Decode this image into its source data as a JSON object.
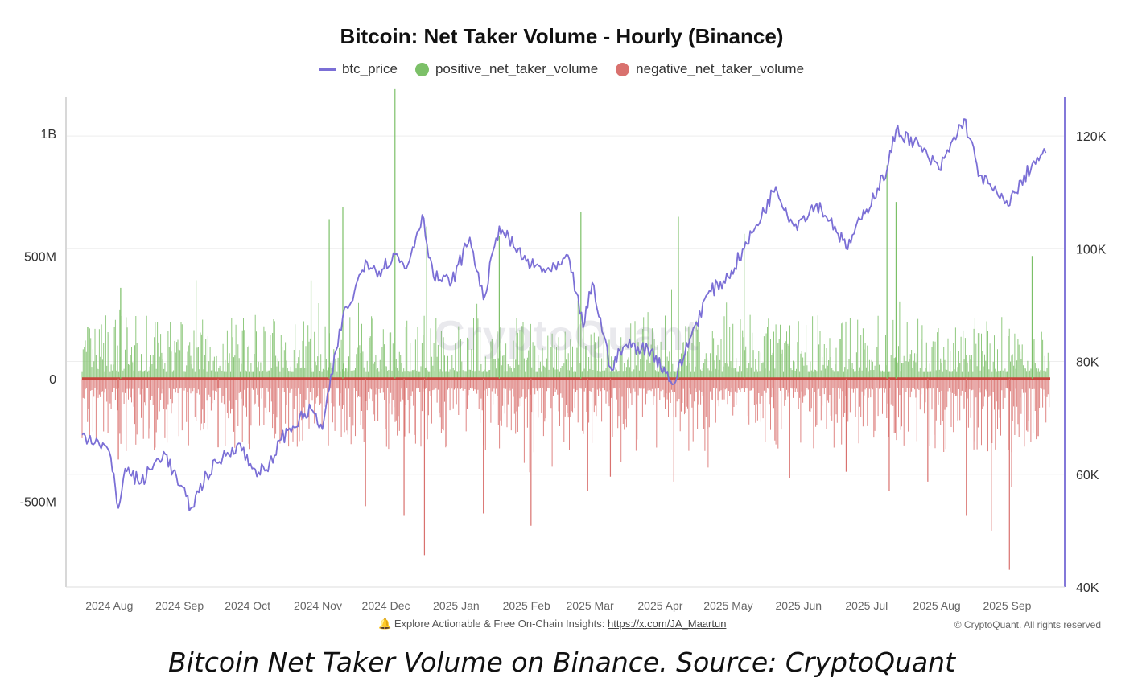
{
  "chart_data": {
    "type": "bar",
    "title": "Bitcoin: Net Taker Volume - Hourly (Binance)",
    "legend": [
      {
        "name": "btc_price",
        "color": "#7b6fd6",
        "shape": "line"
      },
      {
        "name": "positive_net_taker_volume",
        "color": "#7cc068",
        "shape": "dot"
      },
      {
        "name": "negative_net_taker_volume",
        "color": "#d9716e",
        "shape": "dot"
      }
    ],
    "x_ticks": [
      "2024 Aug",
      "2024 Sep",
      "2024 Oct",
      "2024 Nov",
      "2024 Dec",
      "2025 Jan",
      "2025 Feb",
      "2025 Mar",
      "2025 Apr",
      "2025 May",
      "2025 Jun",
      "2025 Jul",
      "2025 Aug",
      "2025 Sep"
    ],
    "y_left": {
      "ticks": [
        "1B",
        "500M",
        "0",
        "-500M"
      ],
      "tick_values": [
        1000000000,
        500000000,
        0,
        -500000000
      ],
      "range": [
        -850000000,
        1150000000
      ]
    },
    "y_right": {
      "ticks": [
        "120K",
        "100K",
        "80K",
        "60K",
        "40K"
      ],
      "tick_values": [
        120000,
        100000,
        80000,
        60000,
        40000
      ],
      "range": [
        40000,
        127000
      ]
    },
    "x_range": [
      "2024-07-20",
      "2025-09-20"
    ],
    "btc_price": {
      "name": "btc_price",
      "x": [
        "2024-07-20",
        "2024-07-27",
        "2024-08-01",
        "2024-08-05",
        "2024-08-08",
        "2024-08-15",
        "2024-08-25",
        "2024-09-01",
        "2024-09-06",
        "2024-09-13",
        "2024-09-20",
        "2024-09-27",
        "2024-10-03",
        "2024-10-10",
        "2024-10-15",
        "2024-10-21",
        "2024-10-29",
        "2024-11-03",
        "2024-11-06",
        "2024-11-12",
        "2024-11-15",
        "2024-11-22",
        "2024-11-28",
        "2024-12-05",
        "2024-12-10",
        "2024-12-17",
        "2024-12-22",
        "2024-12-30",
        "2025-01-07",
        "2025-01-13",
        "2025-01-20",
        "2025-01-27",
        "2025-02-03",
        "2025-02-12",
        "2025-02-20",
        "2025-02-26",
        "2025-03-02",
        "2025-03-10",
        "2025-03-17",
        "2025-03-28",
        "2025-04-07",
        "2025-04-14",
        "2025-04-22",
        "2025-05-01",
        "2025-05-08",
        "2025-05-12",
        "2025-05-22",
        "2025-05-30",
        "2025-06-09",
        "2025-06-17",
        "2025-06-22",
        "2025-07-01",
        "2025-07-10",
        "2025-07-14",
        "2025-07-22",
        "2025-08-02",
        "2025-08-13",
        "2025-08-20",
        "2025-08-31",
        "2025-09-05",
        "2025-09-12",
        "2025-09-18"
      ],
      "y": [
        67000,
        66000,
        64000,
        54000,
        61000,
        58500,
        64000,
        58000,
        54000,
        60000,
        63000,
        65500,
        61000,
        60500,
        66000,
        68500,
        71500,
        68000,
        75000,
        88000,
        90000,
        98000,
        96000,
        99000,
        96500,
        106000,
        95000,
        94000,
        102000,
        91000,
        104000,
        100000,
        97000,
        96000,
        98000,
        86000,
        94000,
        79000,
        83000,
        82000,
        76000,
        84000,
        92000,
        95000,
        100000,
        103000,
        111000,
        104000,
        108000,
        104000,
        100000,
        107000,
        114000,
        121000,
        119000,
        114000,
        123000,
        113000,
        108000,
        110000,
        115000,
        117000
      ]
    },
    "volume_series": [
      {
        "name": "positive_net_taker_volume",
        "note": "hourly bars above zero, mostly under 400M, peak about 1.2B in early December 2024"
      },
      {
        "name": "negative_net_taker_volume",
        "note": "hourly bars below zero, mostly above -400M, trough about -780M in early September 2025"
      }
    ],
    "volume_spikes": [
      {
        "x": "2024-08-05",
        "y": -330000000
      },
      {
        "x": "2024-08-06",
        "y": 370000000
      },
      {
        "x": "2024-09-18",
        "y": -280000000
      },
      {
        "x": "2024-10-29",
        "y": 400000000
      },
      {
        "x": "2024-11-06",
        "y": 650000000
      },
      {
        "x": "2024-11-12",
        "y": 700000000
      },
      {
        "x": "2024-11-22",
        "y": -520000000
      },
      {
        "x": "2024-12-05",
        "y": 1180000000
      },
      {
        "x": "2024-12-09",
        "y": -560000000
      },
      {
        "x": "2024-12-18",
        "y": -720000000
      },
      {
        "x": "2024-12-19",
        "y": 620000000
      },
      {
        "x": "2025-01-13",
        "y": -550000000
      },
      {
        "x": "2025-01-20",
        "y": 580000000
      },
      {
        "x": "2025-02-03",
        "y": -600000000
      },
      {
        "x": "2025-02-25",
        "y": 680000000
      },
      {
        "x": "2025-02-28",
        "y": -460000000
      },
      {
        "x": "2025-03-10",
        "y": -400000000
      },
      {
        "x": "2025-04-07",
        "y": -420000000
      },
      {
        "x": "2025-04-09",
        "y": 660000000
      },
      {
        "x": "2025-05-08",
        "y": 590000000
      },
      {
        "x": "2025-06-22",
        "y": -380000000
      },
      {
        "x": "2025-07-10",
        "y": 870000000
      },
      {
        "x": "2025-07-11",
        "y": -460000000
      },
      {
        "x": "2025-07-14",
        "y": 720000000
      },
      {
        "x": "2025-07-28",
        "y": -420000000
      },
      {
        "x": "2025-08-14",
        "y": -560000000
      },
      {
        "x": "2025-08-25",
        "y": -620000000
      },
      {
        "x": "2025-09-02",
        "y": -780000000
      },
      {
        "x": "2025-09-03",
        "y": -440000000
      },
      {
        "x": "2025-09-12",
        "y": 500000000
      }
    ],
    "colors": {
      "price": "#7b6fd6",
      "positive": "#7cc068",
      "negative": "#d9716e",
      "right_axis": "#8378d9",
      "grid": "#eeeeee"
    }
  },
  "watermark": "CryptoQuant",
  "footer": {
    "insight_icon": "bell-icon",
    "insight_text": "Explore Actionable & Free On-Chain Insights:",
    "insight_link": "https://x.com/JA_Maartun",
    "copyright": "© CryptoQuant. All rights reserved"
  },
  "caption": "Bitcoin Net Taker Volume on Binance. Source: CryptoQuant"
}
